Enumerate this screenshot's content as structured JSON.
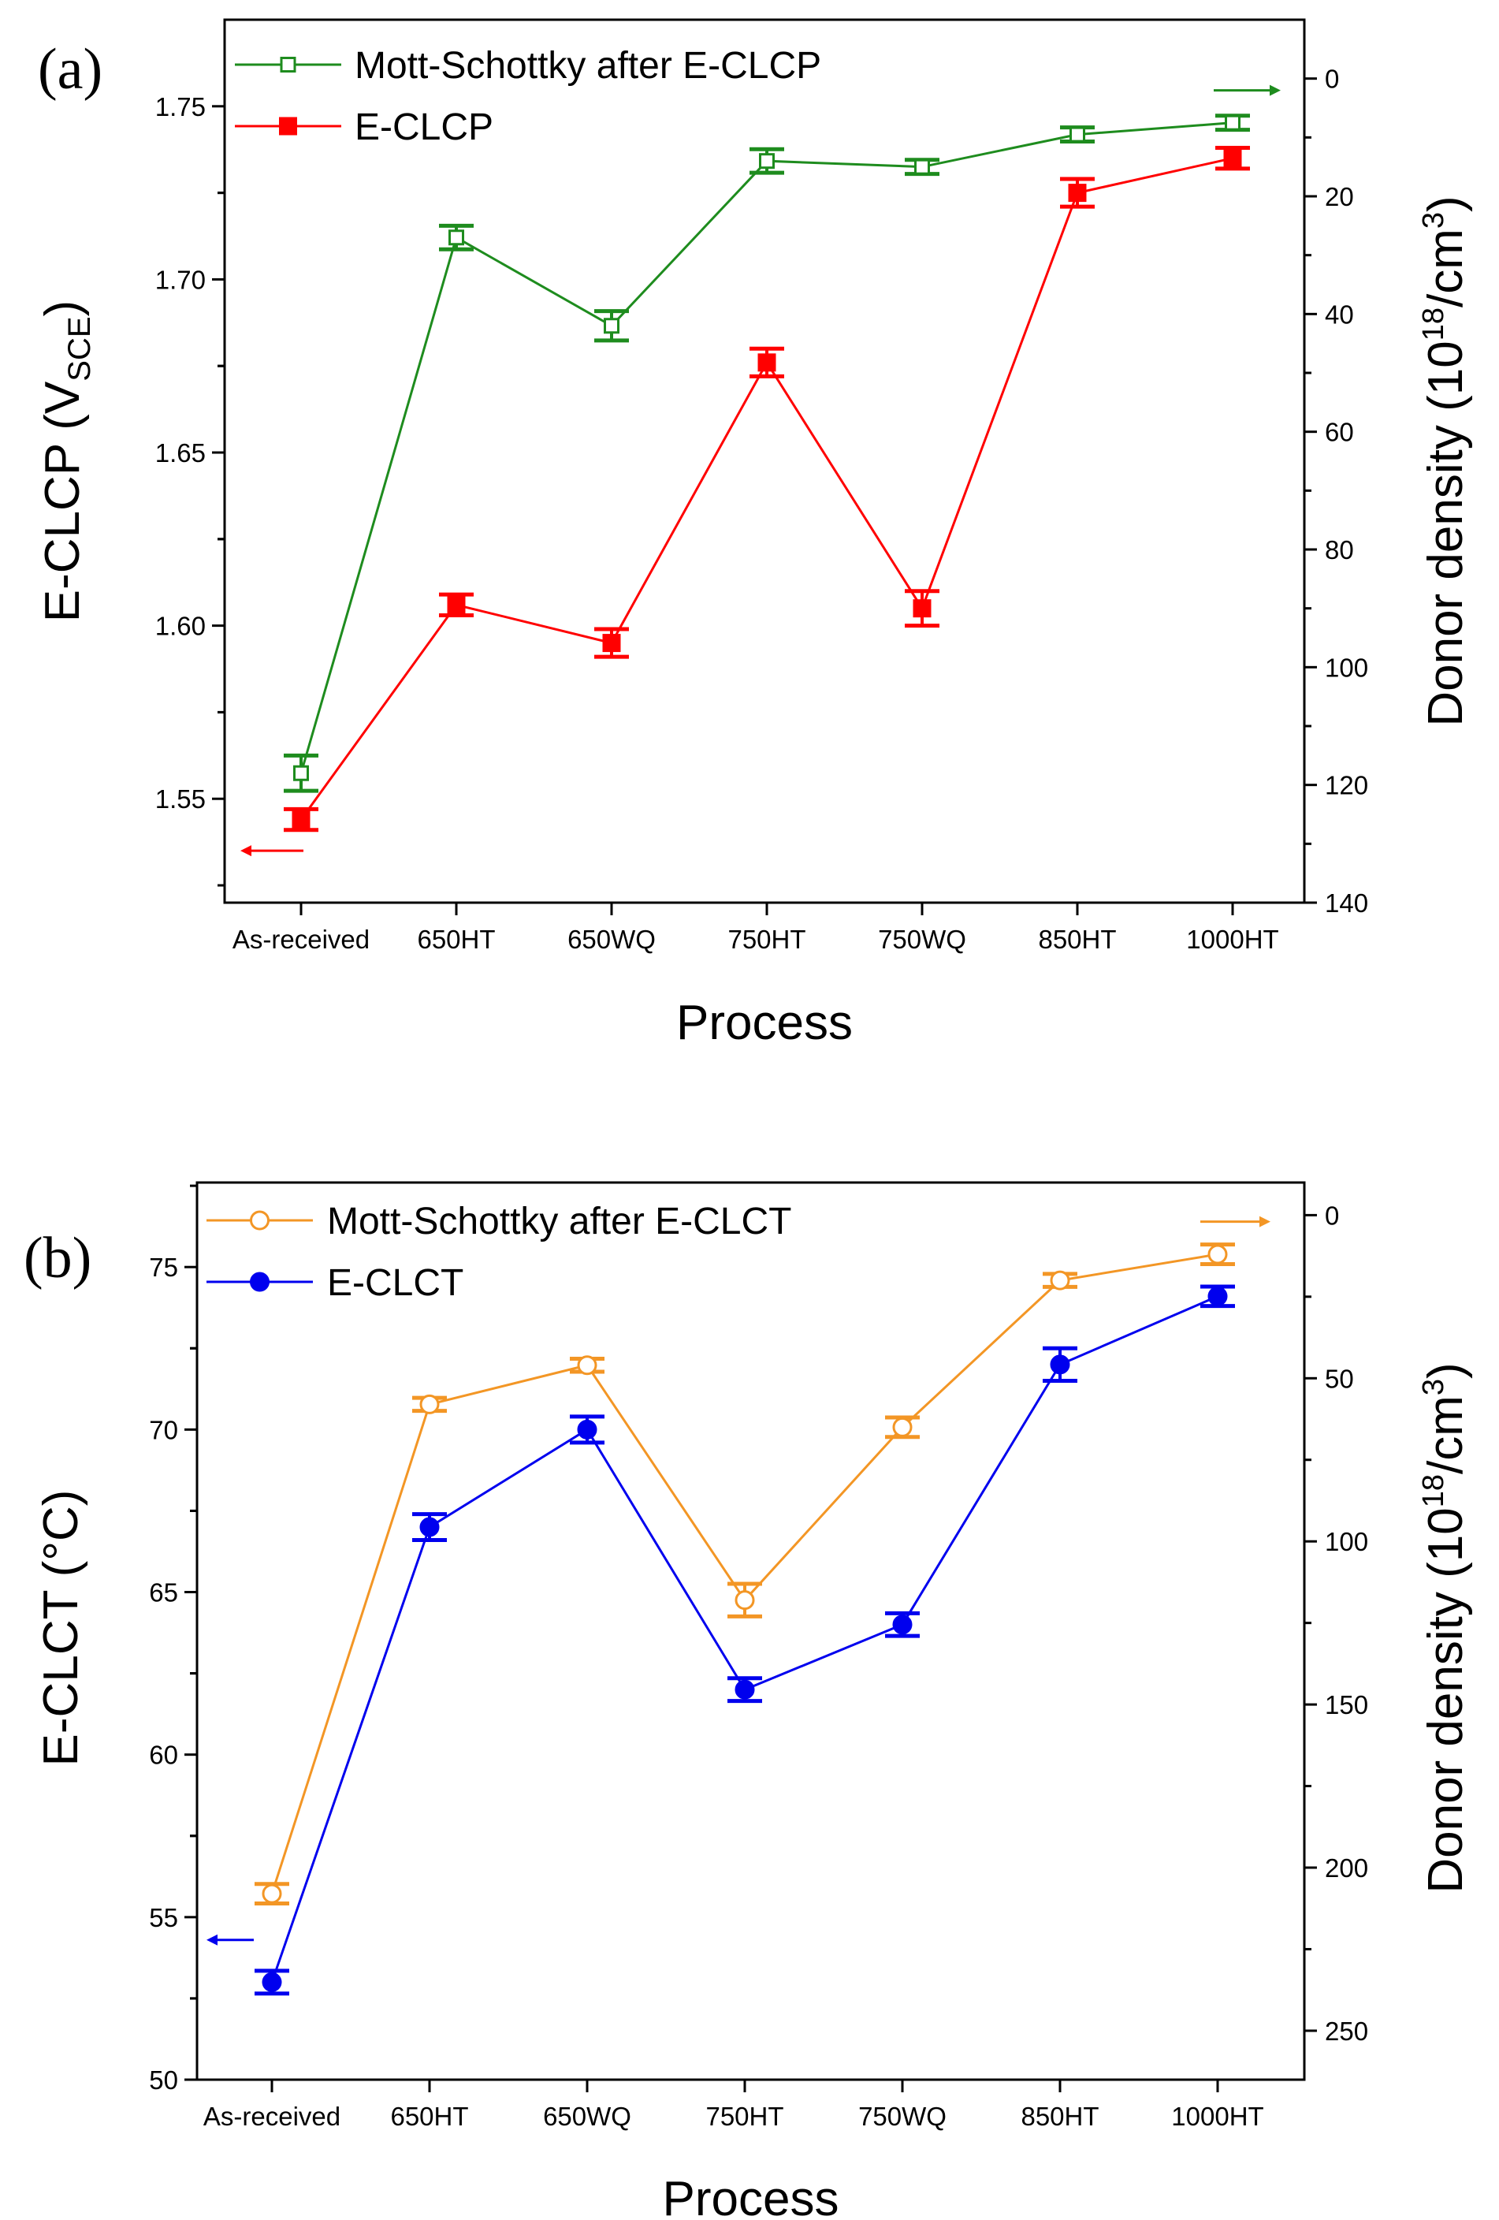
{
  "figure": {
    "panels": [
      {
        "letter": "(a)",
        "xlabel": "Process",
        "ylabel_left": {
          "main": "E-CLCP (V",
          "sub": "SCE",
          "tail": ")"
        },
        "ylabel_right": {
          "main": "Donor density (10",
          "sup1": "18",
          "mid": "/cm",
          "sup2": "3",
          "tail": ")"
        }
      },
      {
        "letter": "(b)",
        "xlabel": "Process",
        "ylabel_left": {
          "main": "E-CLCT (°C)"
        },
        "ylabel_right": {
          "main": "Donor density (10",
          "sup1": "18",
          "mid": "/cm",
          "sup2": "3",
          "tail": ")"
        }
      }
    ]
  },
  "chart_data": [
    {
      "type": "line",
      "panel": "(a)",
      "categories": [
        "As-received",
        "650HT",
        "650WQ",
        "750HT",
        "750WQ",
        "850HT",
        "1000HT"
      ],
      "xlabel": "Process",
      "y_left": {
        "label": "E-CLCP (VSCE)",
        "range": [
          1.52,
          1.775
        ],
        "ticks": [
          1.55,
          1.6,
          1.65,
          1.7,
          1.75
        ],
        "tick_labels": [
          "1.55",
          "1.60",
          "1.65",
          "1.70",
          "1.75"
        ]
      },
      "y_right": {
        "label": "Donor density (10^18/cm^3)",
        "range": [
          140,
          -10
        ],
        "inverted": true,
        "ticks": [
          0,
          20,
          40,
          60,
          80,
          100,
          120,
          140
        ],
        "tick_labels": [
          "0",
          "20",
          "40",
          "60",
          "80",
          "100",
          "120",
          "140"
        ]
      },
      "series": [
        {
          "name": "Mott-Schottky after E-CLCP",
          "axis": "right",
          "color": "#1e8c1e",
          "marker": "open-square",
          "values": [
            118,
            27,
            42,
            14,
            15,
            9.5,
            7.5
          ],
          "errors": [
            3,
            2,
            2.5,
            2,
            1.2,
            1.2,
            1.2
          ],
          "arrow": "right"
        },
        {
          "name": "E-CLCP",
          "axis": "left",
          "color": "#ff0000",
          "marker": "filled-square",
          "values": [
            1.544,
            1.606,
            1.595,
            1.676,
            1.605,
            1.725,
            1.735
          ],
          "errors": [
            0.003,
            0.003,
            0.004,
            0.004,
            0.005,
            0.004,
            0.003
          ],
          "arrow": "left"
        }
      ],
      "legend": "top-left"
    },
    {
      "type": "line",
      "panel": "(b)",
      "categories": [
        "As-received",
        "650HT",
        "650WQ",
        "750HT",
        "750WQ",
        "850HT",
        "1000HT"
      ],
      "xlabel": "Process",
      "y_left": {
        "label": "E-CLCT (°C)",
        "range": [
          50,
          77.6
        ],
        "ticks": [
          50,
          55,
          60,
          65,
          70,
          75
        ],
        "tick_labels": [
          "50",
          "55",
          "60",
          "65",
          "70",
          "75"
        ]
      },
      "y_right": {
        "label": "Donor density (10^18/cm^3)",
        "range": [
          265,
          -10
        ],
        "inverted": true,
        "ticks": [
          0,
          50,
          100,
          150,
          200,
          250
        ],
        "tick_labels": [
          "0",
          "50",
          "100",
          "150",
          "200",
          "250"
        ]
      },
      "series": [
        {
          "name": "Mott-Schottky after E-CLCT",
          "axis": "right",
          "color": "#f39625",
          "marker": "open-circle",
          "values": [
            208,
            58,
            46,
            118,
            65,
            20,
            12
          ],
          "errors": [
            3,
            2,
            2,
            5,
            3,
            2,
            3
          ],
          "arrow": "right"
        },
        {
          "name": "E-CLCT",
          "axis": "left",
          "color": "#0000ee",
          "marker": "filled-circle",
          "values": [
            53,
            67,
            70,
            62,
            64,
            72,
            74.1
          ],
          "errors": [
            0.35,
            0.4,
            0.4,
            0.35,
            0.35,
            0.5,
            0.3
          ],
          "arrow": "left"
        }
      ],
      "legend": "top-left"
    }
  ]
}
